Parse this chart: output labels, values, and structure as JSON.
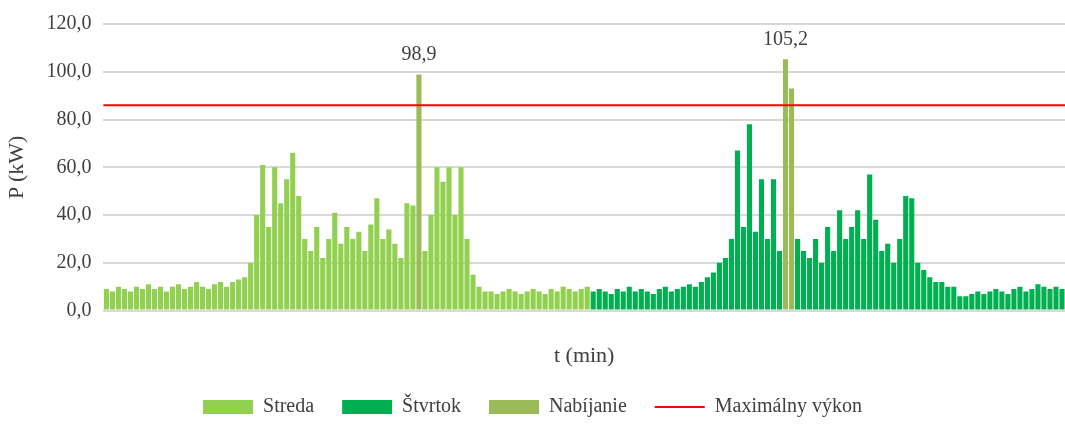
{
  "chart_data": {
    "type": "bar",
    "xlabel": "t (min)",
    "ylabel": "P (kW)",
    "categories": [
      null,
      null,
      null,
      null,
      null,
      null,
      null,
      null,
      null,
      null,
      null,
      null,
      null,
      null,
      null,
      null,
      null,
      null,
      null,
      null,
      null,
      null,
      null,
      null,
      null,
      null,
      null,
      null,
      null,
      null,
      null,
      null,
      null,
      null,
      null,
      null,
      null,
      null,
      null,
      null,
      null,
      null,
      null,
      null,
      null,
      null,
      null,
      null,
      null,
      null,
      null,
      null,
      null,
      null,
      null,
      null,
      null,
      null,
      null,
      null,
      null,
      null,
      null,
      null,
      null,
      null,
      null,
      null,
      null,
      null,
      null,
      null,
      null,
      null,
      null,
      null,
      null,
      null,
      null,
      null,
      null,
      null,
      null,
      null,
      null,
      null,
      null,
      null,
      null,
      null,
      null,
      null,
      null,
      null,
      null,
      null,
      null,
      null,
      null,
      null,
      null,
      null,
      null,
      null,
      null,
      null,
      null,
      null,
      null,
      null,
      null,
      null,
      null,
      null,
      null,
      null,
      null,
      null,
      null,
      null,
      null,
      null,
      null,
      null,
      null,
      null,
      null,
      null,
      null,
      null,
      null,
      null,
      null,
      null,
      null,
      null,
      null,
      null,
      null,
      null,
      null,
      null,
      null,
      null,
      null,
      null,
      null,
      null,
      null,
      null,
      null,
      null,
      null,
      null,
      null,
      null,
      null,
      null,
      null,
      null
    ],
    "series": [
      {
        "name": "Streda",
        "color": "#92d050",
        "values": [
          9,
          8,
          10,
          9,
          8,
          10,
          9,
          11,
          9,
          10,
          8,
          10,
          11,
          9,
          10,
          12,
          10,
          9,
          11,
          12,
          10,
          12,
          13,
          14,
          20,
          40,
          61,
          35,
          60,
          45,
          55,
          66,
          48,
          30,
          25,
          35,
          22,
          30,
          41,
          28,
          35,
          30,
          33,
          25,
          36,
          47,
          30,
          34,
          28,
          22,
          45,
          44,
          null,
          25,
          40,
          60,
          54,
          60,
          40,
          60,
          30,
          15,
          10,
          8,
          8,
          7,
          8,
          9,
          8,
          7,
          8,
          9,
          8,
          7,
          9,
          8,
          10,
          9,
          8,
          9,
          10,
          null,
          null,
          null,
          null,
          null,
          null,
          null,
          null,
          null,
          null,
          null,
          null,
          null,
          null,
          null,
          null,
          null,
          null,
          null,
          null,
          null,
          null,
          null,
          null,
          null,
          null,
          null,
          null,
          null,
          null,
          null,
          null,
          null,
          null,
          null,
          null,
          null,
          null,
          null,
          null,
          null,
          null,
          null,
          null,
          null,
          null,
          null,
          null,
          null,
          null,
          null,
          null,
          null,
          null,
          null,
          null,
          null,
          null,
          null,
          null,
          null,
          null,
          null,
          null,
          null,
          null,
          null,
          null,
          null,
          null,
          null,
          null,
          null,
          null,
          null,
          null,
          null,
          null,
          null
        ]
      },
      {
        "name": "Štvrtok",
        "color": "#00b050",
        "values": [
          null,
          null,
          null,
          null,
          null,
          null,
          null,
          null,
          null,
          null,
          null,
          null,
          null,
          null,
          null,
          null,
          null,
          null,
          null,
          null,
          null,
          null,
          null,
          null,
          null,
          null,
          null,
          null,
          null,
          null,
          null,
          null,
          null,
          null,
          null,
          null,
          null,
          null,
          null,
          null,
          null,
          null,
          null,
          null,
          null,
          null,
          null,
          null,
          null,
          null,
          null,
          null,
          null,
          null,
          null,
          null,
          null,
          null,
          null,
          null,
          null,
          null,
          null,
          null,
          null,
          null,
          null,
          null,
          null,
          null,
          null,
          null,
          null,
          null,
          null,
          null,
          null,
          null,
          null,
          null,
          null,
          8,
          9,
          8,
          7,
          9,
          8,
          10,
          8,
          9,
          8,
          7,
          9,
          10,
          8,
          9,
          10,
          11,
          10,
          12,
          14,
          16,
          20,
          22,
          30,
          67,
          35,
          78,
          33,
          55,
          30,
          55,
          25,
          null,
          null,
          30,
          25,
          22,
          30,
          20,
          35,
          25,
          42,
          30,
          35,
          42,
          30,
          57,
          38,
          25,
          28,
          20,
          30,
          48,
          47,
          20,
          17,
          14,
          12,
          12,
          10,
          10,
          6,
          6,
          7,
          8,
          7,
          8,
          9,
          8,
          7,
          9,
          10,
          8,
          9,
          11,
          10,
          9,
          10,
          9
        ]
      },
      {
        "name": "Nabíjanie",
        "color": "#9bbb59",
        "values": [
          null,
          null,
          null,
          null,
          null,
          null,
          null,
          null,
          null,
          null,
          null,
          null,
          null,
          null,
          null,
          null,
          null,
          null,
          null,
          null,
          null,
          null,
          null,
          null,
          null,
          null,
          null,
          null,
          null,
          null,
          null,
          null,
          null,
          null,
          null,
          null,
          null,
          null,
          null,
          null,
          null,
          null,
          null,
          null,
          null,
          null,
          null,
          null,
          null,
          null,
          null,
          null,
          98.9,
          null,
          null,
          null,
          null,
          null,
          null,
          null,
          null,
          null,
          null,
          null,
          null,
          null,
          null,
          null,
          null,
          null,
          null,
          null,
          null,
          null,
          null,
          null,
          null,
          null,
          null,
          null,
          null,
          null,
          null,
          null,
          null,
          null,
          null,
          null,
          null,
          null,
          null,
          null,
          null,
          null,
          null,
          null,
          null,
          null,
          null,
          null,
          null,
          null,
          null,
          null,
          null,
          null,
          null,
          null,
          null,
          null,
          null,
          null,
          null,
          105.2,
          93,
          null,
          null,
          null,
          null,
          null,
          null,
          null,
          null,
          null,
          null,
          null,
          null,
          null,
          null,
          null,
          null,
          null,
          null,
          null,
          null,
          null,
          null,
          null,
          null,
          null,
          null,
          null,
          null,
          null,
          null,
          null,
          null,
          null,
          null,
          null,
          null,
          null,
          null,
          null,
          null,
          null,
          null,
          null,
          null,
          null
        ],
        "value_labels": [
          null,
          null,
          null,
          null,
          null,
          null,
          null,
          null,
          null,
          null,
          null,
          null,
          null,
          null,
          null,
          null,
          null,
          null,
          null,
          null,
          null,
          null,
          null,
          null,
          null,
          null,
          null,
          null,
          null,
          null,
          null,
          null,
          null,
          null,
          null,
          null,
          null,
          null,
          null,
          null,
          null,
          null,
          null,
          null,
          null,
          null,
          null,
          null,
          null,
          null,
          null,
          null,
          "98,9",
          null,
          null,
          null,
          null,
          null,
          null,
          null,
          null,
          null,
          null,
          null,
          null,
          null,
          null,
          null,
          null,
          null,
          null,
          null,
          null,
          null,
          null,
          null,
          null,
          null,
          null,
          null,
          null,
          null,
          null,
          null,
          null,
          null,
          null,
          null,
          null,
          null,
          null,
          null,
          null,
          null,
          null,
          null,
          null,
          null,
          null,
          null,
          null,
          null,
          null,
          null,
          null,
          null,
          null,
          null,
          null,
          null,
          null,
          null,
          null,
          "105,2",
          null,
          null,
          null,
          null,
          null,
          null,
          null,
          null,
          null,
          null,
          null,
          null,
          null,
          null,
          null,
          null,
          null,
          null,
          null,
          null,
          null,
          null,
          null,
          null,
          null,
          null,
          null,
          null,
          null,
          null,
          null,
          null,
          null,
          null,
          null,
          null,
          null,
          null,
          null,
          null,
          null,
          null,
          null,
          null,
          null,
          null
        ]
      }
    ],
    "ylim": [
      0,
      120
    ],
    "yticks": [
      {
        "value": 0,
        "label": "0,0"
      },
      {
        "value": 20,
        "label": "20,0"
      },
      {
        "value": 40,
        "label": "40,0"
      },
      {
        "value": 60,
        "label": "60,0"
      },
      {
        "value": 80,
        "label": "80,0"
      },
      {
        "value": 100,
        "label": "100,0"
      },
      {
        "value": 120,
        "label": "120,0"
      }
    ],
    "ref_lines": [
      {
        "axis": "y",
        "value": 86,
        "label": "Maximálny výkon",
        "color": "#ff0000",
        "line_style": "solid"
      }
    ],
    "grid": "y",
    "legend": "bottom"
  }
}
